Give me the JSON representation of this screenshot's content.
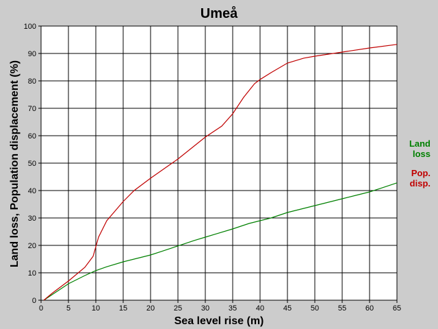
{
  "chart_data": {
    "type": "line",
    "title": "Umeå",
    "xlabel": "Sea level rise (m)",
    "ylabel": "Land loss, Population displacement (%)",
    "xlim": [
      0,
      65
    ],
    "ylim": [
      0,
      100
    ],
    "xticks": [
      "0",
      "5",
      "10",
      "15",
      "20",
      "25",
      "30",
      "35",
      "40",
      "45",
      "50",
      "55",
      "60",
      "65"
    ],
    "yticks": [
      "0",
      "10",
      "20",
      "30",
      "40",
      "50",
      "60",
      "70",
      "80",
      "90",
      "100"
    ],
    "grid": true,
    "legend_position": "right",
    "series": [
      {
        "name_lines": [
          "Land",
          "loss"
        ],
        "color": "#008000",
        "x": [
          0.5,
          2,
          5,
          8,
          10,
          12,
          15,
          18,
          20,
          22,
          25,
          28,
          30,
          32,
          35,
          38,
          40,
          42,
          45,
          48,
          50,
          52,
          55,
          58,
          60,
          62,
          65
        ],
        "y": [
          0,
          2,
          6,
          9,
          10.8,
          12.2,
          14,
          15.5,
          16.5,
          17.8,
          19.8,
          21.8,
          23,
          24.2,
          26,
          28,
          29,
          30,
          32,
          33.5,
          34.5,
          35.5,
          37,
          38.5,
          39.5,
          40.8,
          42.8
        ]
      },
      {
        "name_lines": [
          "Pop.",
          "disp."
        ],
        "color": "#c00000",
        "x": [
          0.5,
          2,
          5,
          8,
          9.5,
          10.5,
          12,
          15,
          17,
          20,
          25,
          30,
          33,
          35,
          37,
          39,
          40,
          42,
          45,
          48,
          50,
          55,
          60,
          65
        ],
        "y": [
          0,
          2.5,
          7,
          12,
          16,
          23,
          29,
          36,
          40,
          44.5,
          51.5,
          59.5,
          63.5,
          68,
          74,
          79,
          80.5,
          83,
          86.5,
          88.3,
          89,
          90.5,
          92,
          93.3
        ]
      }
    ]
  }
}
